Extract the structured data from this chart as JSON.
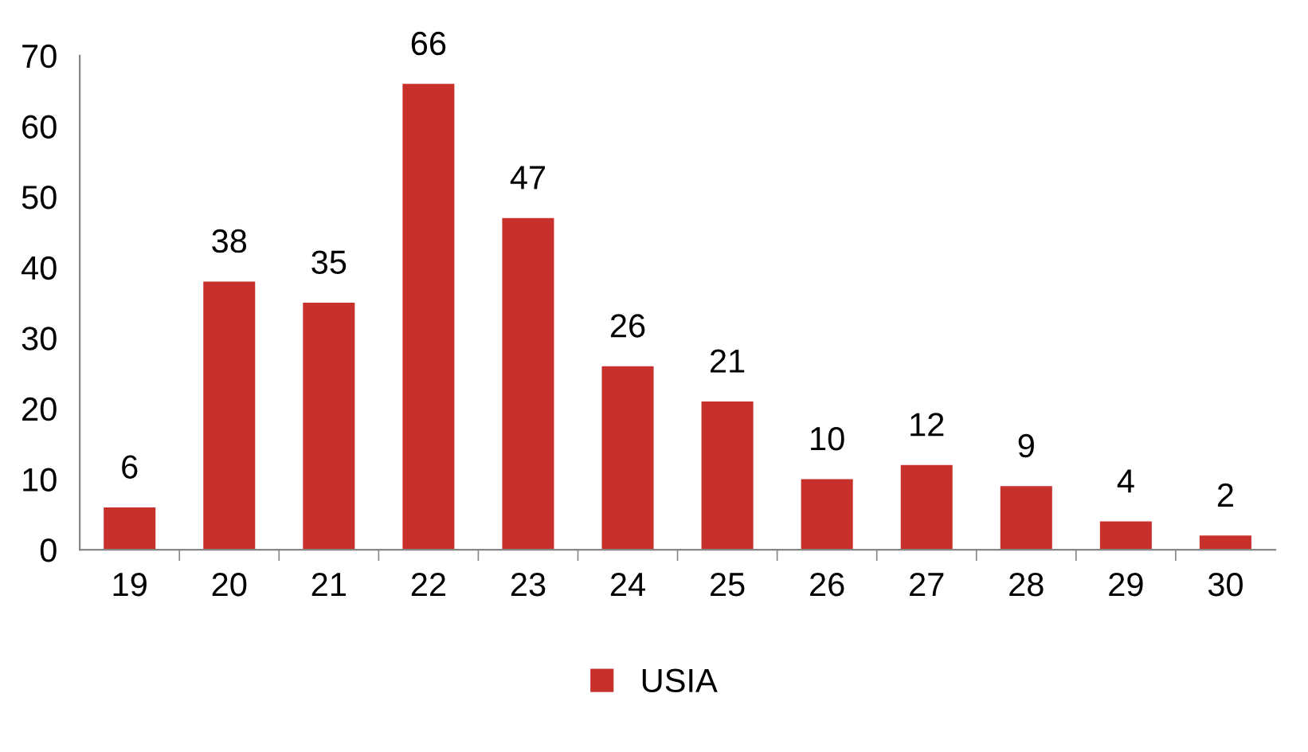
{
  "chart_data": {
    "type": "bar",
    "categories": [
      "19",
      "20",
      "21",
      "22",
      "23",
      "24",
      "25",
      "26",
      "27",
      "28",
      "29",
      "30"
    ],
    "series": [
      {
        "name": "USIA",
        "color": "#c8302c",
        "values": [
          6,
          38,
          35,
          66,
          47,
          26,
          21,
          10,
          12,
          9,
          4,
          2
        ]
      }
    ],
    "ylim": [
      0,
      70
    ],
    "yticks": [
      0,
      10,
      20,
      30,
      40,
      50,
      60,
      70
    ],
    "data_labels": true,
    "grid": false,
    "legend": "bottom"
  }
}
